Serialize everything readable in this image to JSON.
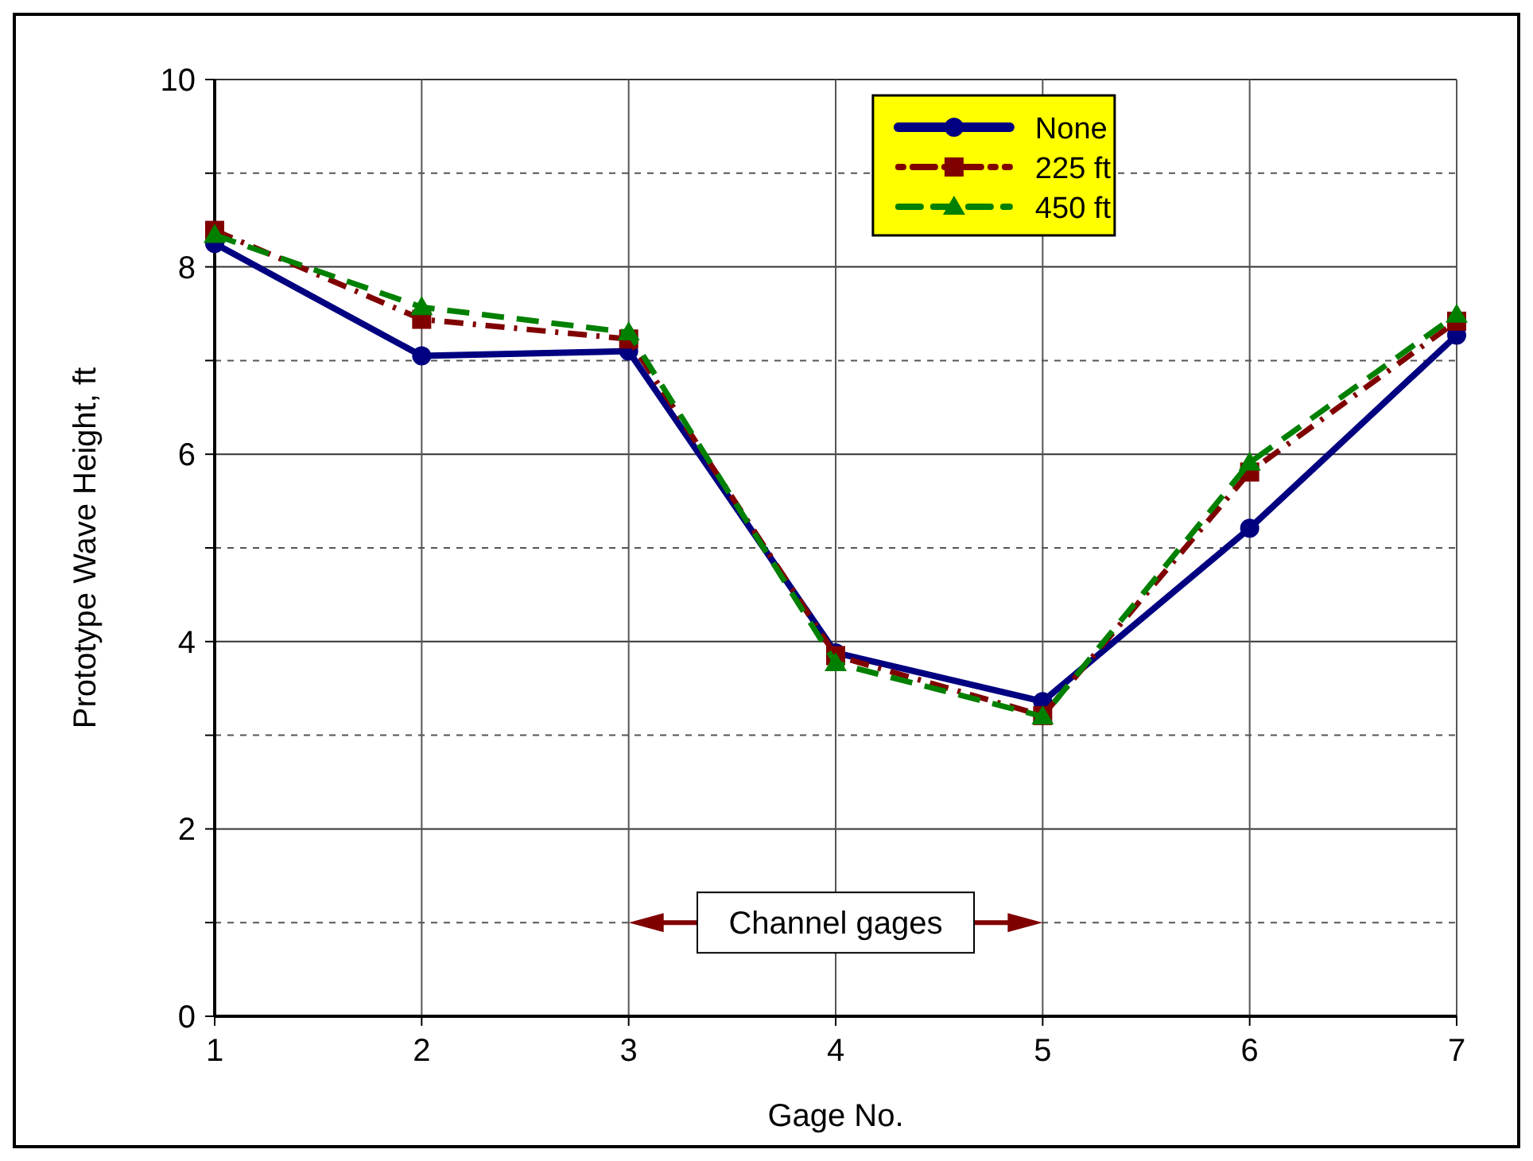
{
  "chart_data": {
    "type": "line",
    "xlabel": "Gage No.",
    "ylabel": "Prototype Wave Height, ft",
    "x": [
      1,
      2,
      3,
      4,
      5,
      6,
      7
    ],
    "xlim": [
      1,
      7
    ],
    "xticks": [
      1,
      2,
      3,
      4,
      5,
      6,
      7
    ],
    "ylim": [
      0,
      10
    ],
    "yticks": [
      0,
      {
        "value": 1,
        "label": null
      },
      2,
      {
        "value": 3,
        "label": null
      },
      4,
      {
        "value": 5,
        "label": null
      },
      6,
      {
        "value": 7,
        "label": null
      },
      8,
      {
        "value": 9,
        "label": null
      },
      10
    ],
    "grid": true,
    "legend": "top",
    "series": [
      {
        "name": "None",
        "color": "#000080",
        "marker": "circle",
        "line_style": "solid",
        "values": [
          8.25,
          7.05,
          7.1,
          3.88,
          3.36,
          5.21,
          7.27
        ]
      },
      {
        "name": "225 ft",
        "color": "#800000",
        "marker": "square",
        "line_style": "dashdot",
        "values": [
          8.39,
          7.44,
          7.23,
          3.85,
          3.21,
          5.81,
          7.42
        ]
      },
      {
        "name": "450 ft",
        "color": "#008000",
        "marker": "triangle",
        "line_style": "dashed",
        "values": [
          8.34,
          7.57,
          7.3,
          3.77,
          3.2,
          5.91,
          7.49
        ]
      }
    ],
    "annotations": [
      "Channel gages"
    ]
  }
}
